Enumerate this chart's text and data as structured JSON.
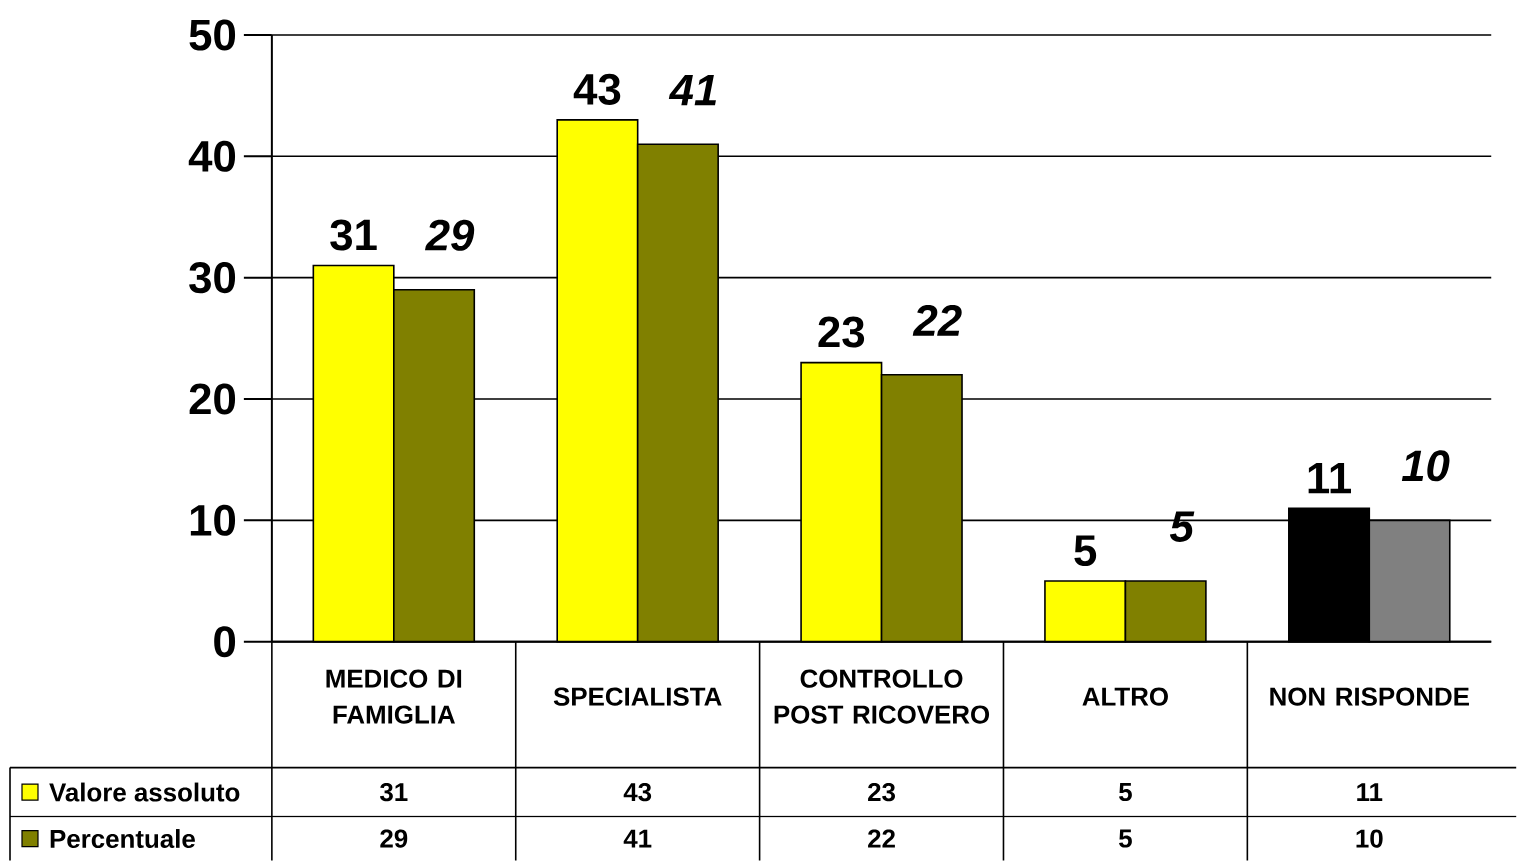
{
  "chart_data": {
    "type": "bar",
    "categories": [
      "MEDICO DI FAMIGLIA",
      "SPECIALISTA",
      "CONTROLLO POST RICOVERO",
      "ALTRO",
      "NON RISPONDE"
    ],
    "series": [
      {
        "name": "Valore assoluto",
        "color": "#ffff00",
        "colors": [
          "#ffff00",
          "#ffff00",
          "#ffff00",
          "#ffff00",
          "#000000"
        ],
        "values": [
          31,
          43,
          23,
          5,
          11
        ],
        "value_labels": [
          "31",
          "43",
          "23",
          "5",
          "11"
        ]
      },
      {
        "name": "Percentuale",
        "color": "#808000",
        "colors": [
          "#808000",
          "#808000",
          "#808000",
          "#808000",
          "#808080"
        ],
        "values": [
          29,
          41,
          22,
          5,
          10
        ],
        "value_labels": [
          "29",
          "41",
          "22",
          "5",
          "10"
        ]
      }
    ],
    "ylim": [
      0,
      50
    ],
    "yticks": [
      0,
      10,
      20,
      30,
      40,
      50
    ],
    "grid": "y",
    "legend": "bottom"
  }
}
